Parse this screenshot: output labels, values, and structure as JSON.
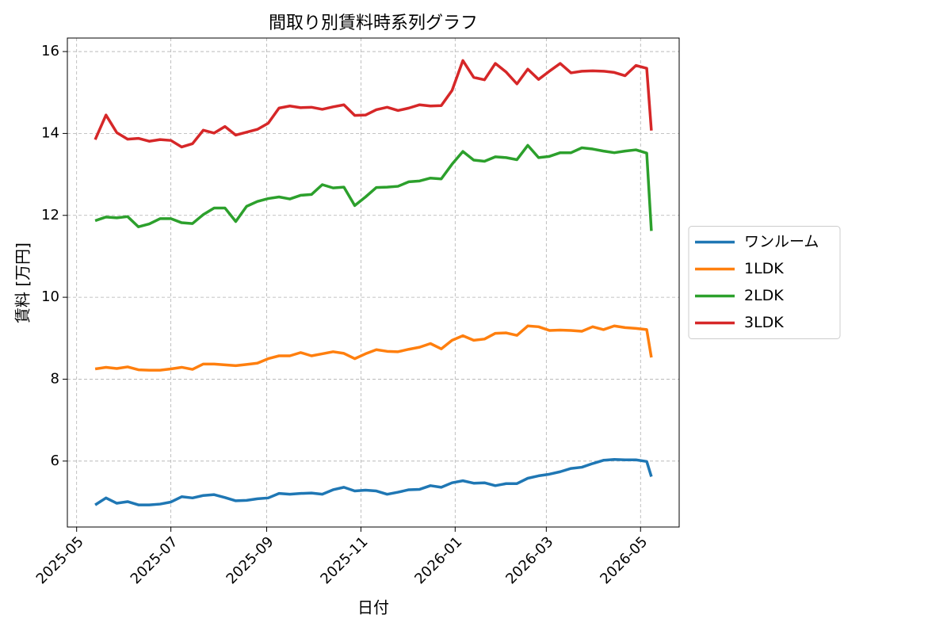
{
  "chart_data": {
    "type": "line",
    "title": "間取り別賃料時系列グラフ",
    "xlabel": "日付",
    "ylabel": "賃料 [万円]",
    "x": [
      "2025-05-13",
      "2025-05-20",
      "2025-05-27",
      "2025-06-03",
      "2025-06-10",
      "2025-06-17",
      "2025-06-24",
      "2025-07-01",
      "2025-07-08",
      "2025-07-15",
      "2025-07-22",
      "2025-07-29",
      "2025-08-05",
      "2025-08-12",
      "2025-08-19",
      "2025-08-26",
      "2025-09-02",
      "2025-09-09",
      "2025-09-16",
      "2025-09-23",
      "2025-09-30",
      "2025-10-07",
      "2025-10-14",
      "2025-10-21",
      "2025-10-28",
      "2025-11-04",
      "2025-11-11",
      "2025-11-18",
      "2025-11-25",
      "2025-12-02",
      "2025-12-09",
      "2025-12-16",
      "2025-12-23",
      "2025-12-30",
      "2026-01-06",
      "2026-01-13",
      "2026-01-20",
      "2026-01-27",
      "2026-02-03",
      "2026-02-10",
      "2026-02-17",
      "2026-02-24",
      "2026-03-03",
      "2026-03-10",
      "2026-03-17",
      "2026-03-24",
      "2026-03-31",
      "2026-04-07",
      "2026-04-14",
      "2026-04-21",
      "2026-04-28",
      "2026-05-05",
      "2026-05-08"
    ],
    "series": [
      {
        "name": "ワンルーム",
        "color": "#1f77b4",
        "values": [
          4.93,
          5.1,
          4.97,
          5.01,
          4.93,
          4.93,
          4.95,
          5.0,
          5.13,
          5.1,
          5.16,
          5.18,
          5.11,
          5.03,
          5.04,
          5.08,
          5.1,
          5.21,
          5.19,
          5.21,
          5.22,
          5.19,
          5.3,
          5.36,
          5.27,
          5.29,
          5.27,
          5.19,
          5.24,
          5.3,
          5.31,
          5.4,
          5.36,
          5.47,
          5.52,
          5.46,
          5.47,
          5.4,
          5.45,
          5.45,
          5.58,
          5.64,
          5.68,
          5.74,
          5.82,
          5.85,
          5.94,
          6.02,
          6.04,
          6.03,
          6.03,
          5.99,
          5.62
        ]
      },
      {
        "name": "1LDK",
        "color": "#ff7f0e",
        "values": [
          8.25,
          8.29,
          8.26,
          8.3,
          8.23,
          8.22,
          8.22,
          8.25,
          8.29,
          8.24,
          8.37,
          8.37,
          8.35,
          8.33,
          8.36,
          8.39,
          8.5,
          8.57,
          8.57,
          8.65,
          8.57,
          8.62,
          8.67,
          8.63,
          8.5,
          8.62,
          8.72,
          8.68,
          8.67,
          8.73,
          8.78,
          8.87,
          8.74,
          8.95,
          9.06,
          8.95,
          8.98,
          9.12,
          9.13,
          9.07,
          9.3,
          9.28,
          9.19,
          9.2,
          9.19,
          9.17,
          9.28,
          9.21,
          9.3,
          9.26,
          9.24,
          9.21,
          8.53
        ]
      },
      {
        "name": "2LDK",
        "color": "#2ca02c",
        "values": [
          11.87,
          11.96,
          11.94,
          11.97,
          11.72,
          11.79,
          11.92,
          11.92,
          11.82,
          11.8,
          12.02,
          12.18,
          12.18,
          11.85,
          12.22,
          12.34,
          12.41,
          12.45,
          12.4,
          12.49,
          12.51,
          12.75,
          12.67,
          12.69,
          12.24,
          12.45,
          12.68,
          12.69,
          12.71,
          12.82,
          12.84,
          12.91,
          12.89,
          13.25,
          13.56,
          13.35,
          13.32,
          13.43,
          13.41,
          13.36,
          13.71,
          13.41,
          13.44,
          13.53,
          13.53,
          13.65,
          13.62,
          13.57,
          13.53,
          13.57,
          13.6,
          13.52,
          11.62
        ]
      },
      {
        "name": "3LDK",
        "color": "#d62728",
        "values": [
          13.85,
          14.45,
          14.02,
          13.86,
          13.88,
          13.81,
          13.85,
          13.83,
          13.67,
          13.75,
          14.08,
          14.01,
          14.17,
          13.96,
          14.03,
          14.1,
          14.25,
          14.62,
          14.67,
          14.63,
          14.64,
          14.59,
          14.65,
          14.7,
          14.44,
          14.45,
          14.58,
          14.64,
          14.56,
          14.62,
          14.7,
          14.67,
          14.68,
          15.05,
          15.78,
          15.37,
          15.31,
          15.71,
          15.5,
          15.21,
          15.57,
          15.32,
          15.52,
          15.71,
          15.48,
          15.52,
          15.53,
          15.52,
          15.49,
          15.41,
          15.66,
          15.59,
          14.07
        ]
      }
    ],
    "xlim": [
      "2025-04-25",
      "2026-05-26"
    ],
    "xticks": [
      {
        "value": "2025-05-01",
        "label": "2025-05"
      },
      {
        "value": "2025-07-01",
        "label": "2025-07"
      },
      {
        "value": "2025-09-01",
        "label": "2025-09"
      },
      {
        "value": "2025-11-01",
        "label": "2025-11"
      },
      {
        "value": "2026-01-01",
        "label": "2026-01"
      },
      {
        "value": "2026-03-01",
        "label": "2026-03"
      },
      {
        "value": "2026-05-01",
        "label": "2026-05"
      }
    ],
    "ylim": [
      4.39,
      16.33
    ],
    "yticks": [
      6,
      8,
      10,
      12,
      14,
      16
    ],
    "grid": true,
    "legend": "outside right"
  }
}
